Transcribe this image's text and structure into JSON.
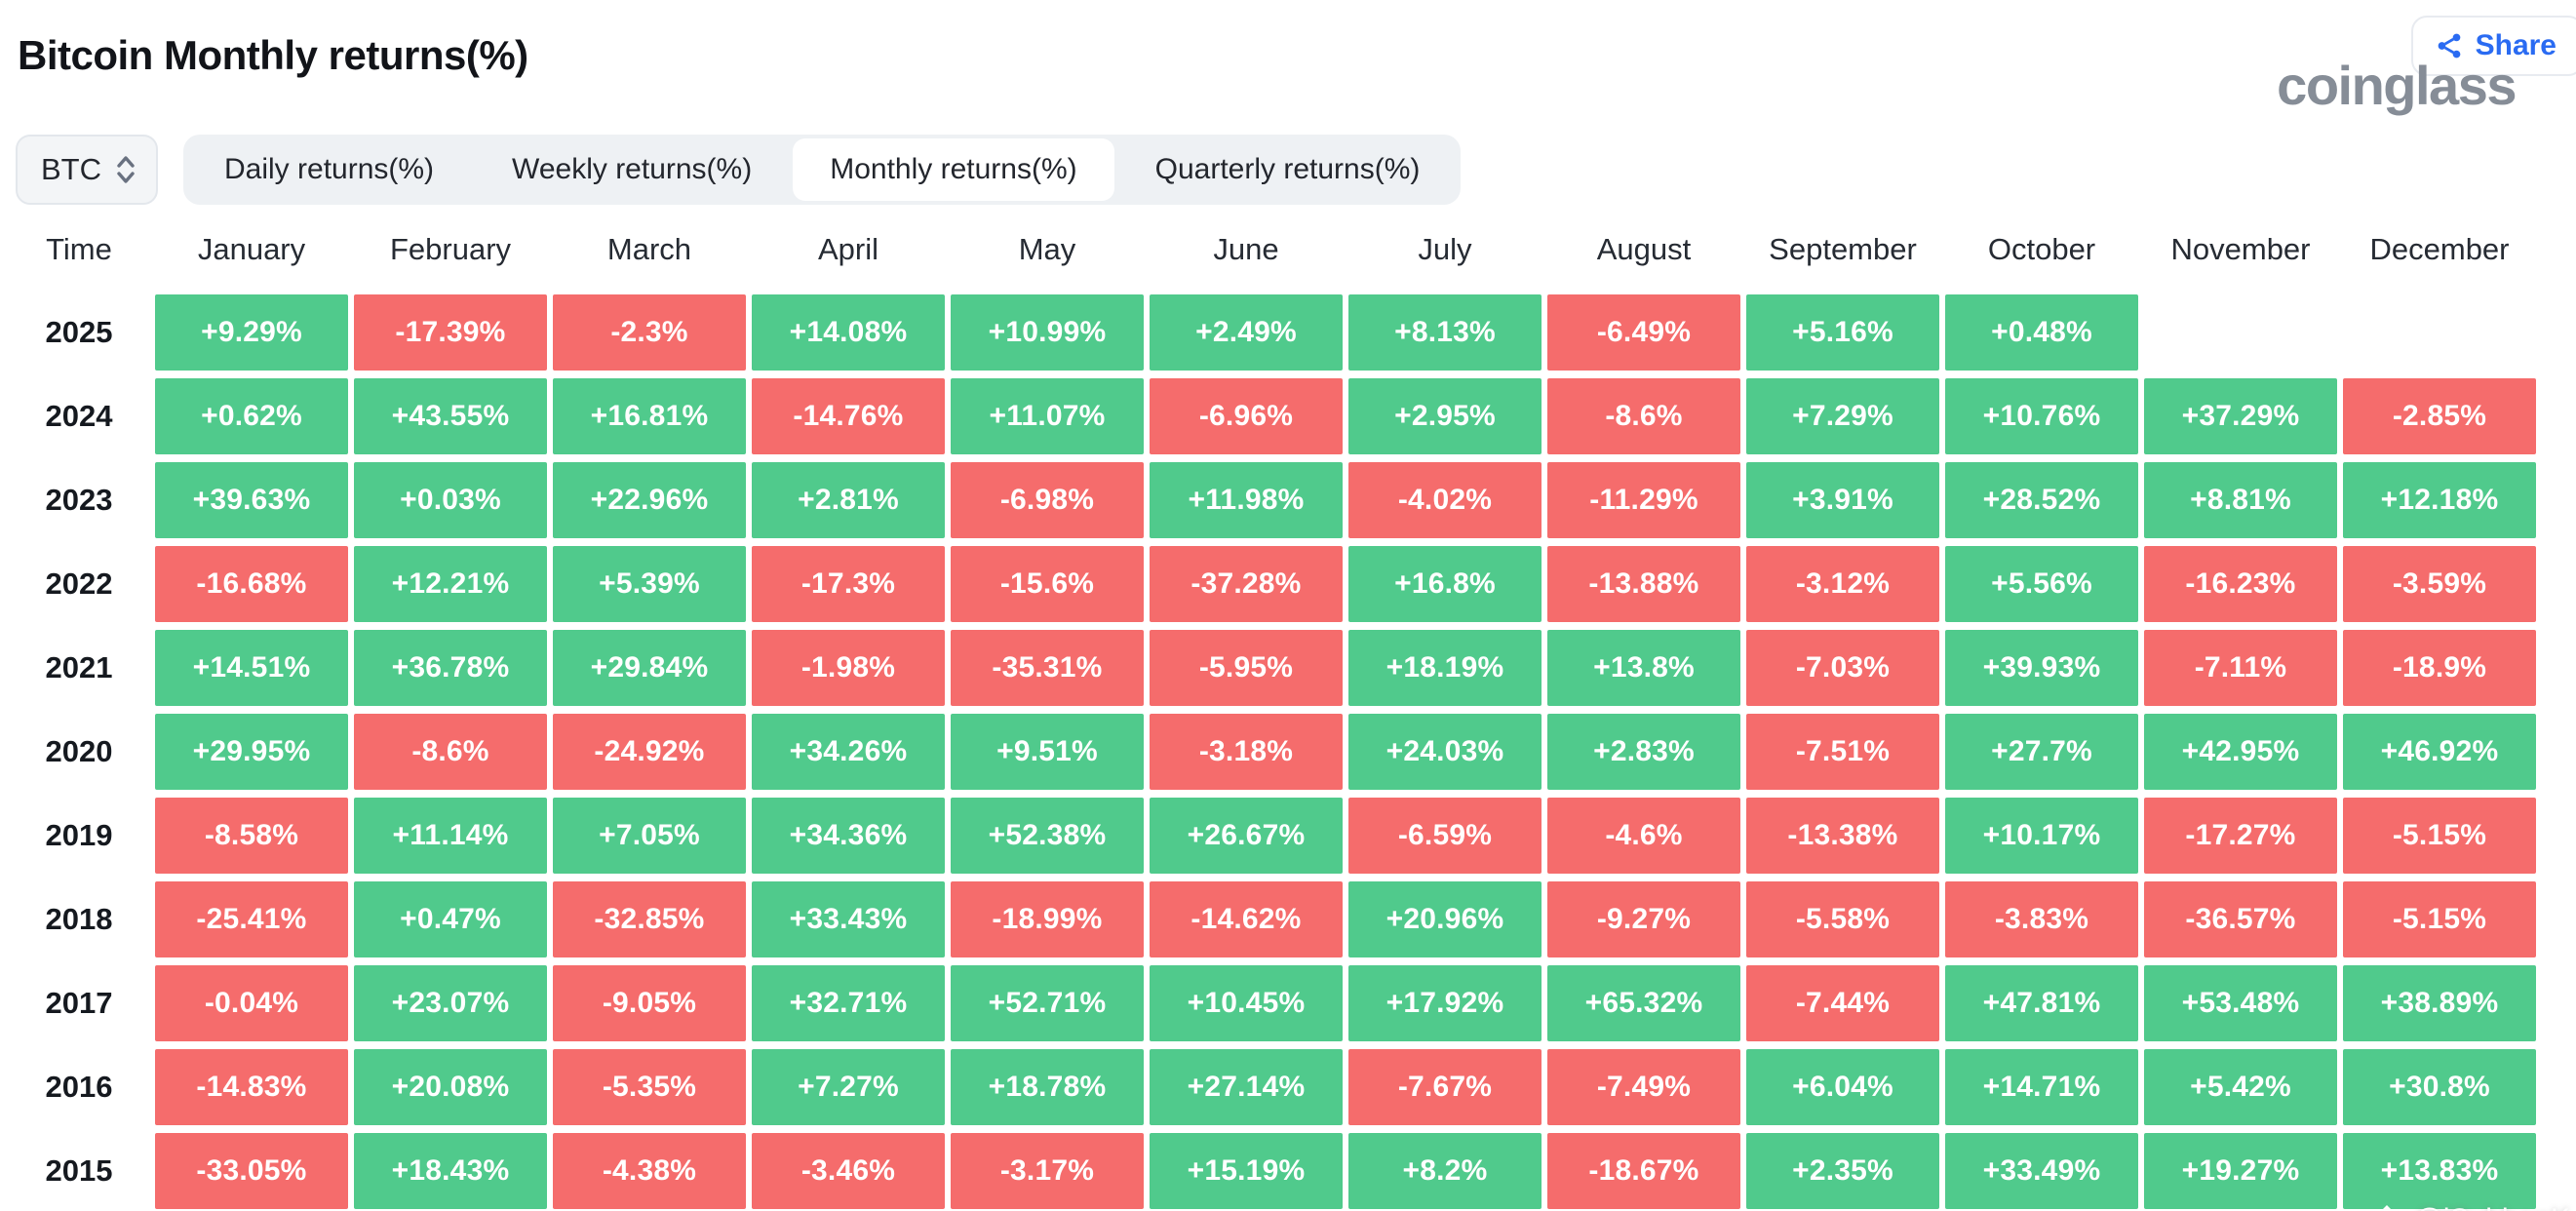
{
  "header": {
    "title": "Bitcoin Monthly returns(%)",
    "logo": "coinglass",
    "share_label": "Share"
  },
  "controls": {
    "symbol": "BTC",
    "tabs": [
      {
        "label": "Daily returns(%)",
        "selected": false
      },
      {
        "label": "Weekly returns(%)",
        "selected": false
      },
      {
        "label": "Monthly returns(%)",
        "selected": true
      },
      {
        "label": "Quarterly returns(%)",
        "selected": false
      }
    ]
  },
  "chart_data": {
    "type": "heatmap",
    "title": "Bitcoin Monthly returns(%)",
    "unit": "%",
    "color_positive": "#50CA8C",
    "color_negative": "#F56C6C",
    "columns": [
      "Time",
      "January",
      "February",
      "March",
      "April",
      "May",
      "June",
      "July",
      "August",
      "September",
      "October",
      "November",
      "December"
    ],
    "rows": [
      {
        "year": "2025",
        "values": [
          "+9.29%",
          "-17.39%",
          "-2.3%",
          "+14.08%",
          "+10.99%",
          "+2.49%",
          "+8.13%",
          "-6.49%",
          "+5.16%",
          "+0.48%",
          "",
          ""
        ]
      },
      {
        "year": "2024",
        "values": [
          "+0.62%",
          "+43.55%",
          "+16.81%",
          "-14.76%",
          "+11.07%",
          "-6.96%",
          "+2.95%",
          "-8.6%",
          "+7.29%",
          "+10.76%",
          "+37.29%",
          "-2.85%"
        ]
      },
      {
        "year": "2023",
        "values": [
          "+39.63%",
          "+0.03%",
          "+22.96%",
          "+2.81%",
          "-6.98%",
          "+11.98%",
          "-4.02%",
          "-11.29%",
          "+3.91%",
          "+28.52%",
          "+8.81%",
          "+12.18%"
        ]
      },
      {
        "year": "2022",
        "values": [
          "-16.68%",
          "+12.21%",
          "+5.39%",
          "-17.3%",
          "-15.6%",
          "-37.28%",
          "+16.8%",
          "-13.88%",
          "-3.12%",
          "+5.56%",
          "-16.23%",
          "-3.59%"
        ]
      },
      {
        "year": "2021",
        "values": [
          "+14.51%",
          "+36.78%",
          "+29.84%",
          "-1.98%",
          "-35.31%",
          "-5.95%",
          "+18.19%",
          "+13.8%",
          "-7.03%",
          "+39.93%",
          "-7.11%",
          "-18.9%"
        ]
      },
      {
        "year": "2020",
        "values": [
          "+29.95%",
          "-8.6%",
          "-24.92%",
          "+34.26%",
          "+9.51%",
          "-3.18%",
          "+24.03%",
          "+2.83%",
          "-7.51%",
          "+27.7%",
          "+42.95%",
          "+46.92%"
        ]
      },
      {
        "year": "2019",
        "values": [
          "-8.58%",
          "+11.14%",
          "+7.05%",
          "+34.36%",
          "+52.38%",
          "+26.67%",
          "-6.59%",
          "-4.6%",
          "-13.38%",
          "+10.17%",
          "-17.27%",
          "-5.15%"
        ]
      },
      {
        "year": "2018",
        "values": [
          "-25.41%",
          "+0.47%",
          "-32.85%",
          "+33.43%",
          "-18.99%",
          "-14.62%",
          "+20.96%",
          "-9.27%",
          "-5.58%",
          "-3.83%",
          "-36.57%",
          "-5.15%"
        ]
      },
      {
        "year": "2017",
        "values": [
          "-0.04%",
          "+23.07%",
          "-9.05%",
          "+32.71%",
          "+52.71%",
          "+10.45%",
          "+17.92%",
          "+65.32%",
          "-7.44%",
          "+47.81%",
          "+53.48%",
          "+38.89%"
        ]
      },
      {
        "year": "2016",
        "values": [
          "-14.83%",
          "+20.08%",
          "-5.35%",
          "+7.27%",
          "+18.78%",
          "+27.14%",
          "-7.67%",
          "-7.49%",
          "+6.04%",
          "+14.71%",
          "+5.42%",
          "+30.8%"
        ]
      },
      {
        "year": "2015",
        "values": [
          "-33.05%",
          "+18.43%",
          "-4.38%",
          "-3.46%",
          "-3.17%",
          "+15.19%",
          "+8.2%",
          "-18.67%",
          "+2.35%",
          "+33.49%",
          "+19.27%",
          "+13.83%"
        ]
      }
    ]
  },
  "watermark": {
    "handle": "@iSubhanK"
  }
}
